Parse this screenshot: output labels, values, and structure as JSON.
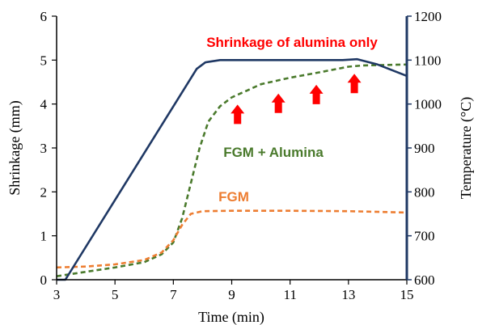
{
  "chart_data": {
    "type": "line",
    "xlabel": "Time (min)",
    "ylabel": "Shrinkage (mm)",
    "y2label": "Temperature (°C)",
    "xlim": [
      3,
      15
    ],
    "ylim": [
      0,
      6
    ],
    "y2lim": [
      600,
      1200
    ],
    "x_ticks": [
      "3",
      "5",
      "7",
      "9",
      "11",
      "13",
      "15"
    ],
    "y_ticks": [
      "0",
      "1",
      "2",
      "3",
      "4",
      "5",
      "6"
    ],
    "y2_ticks": [
      "600",
      "700",
      "800",
      "900",
      "1000",
      "1100",
      "1200"
    ],
    "grid": false,
    "series": [
      {
        "name": "FGM + Alumina",
        "axis": "left",
        "style": "dashed",
        "color": "#4a7a2c",
        "points": [
          [
            3.0,
            0.08
          ],
          [
            4.0,
            0.18
          ],
          [
            5.0,
            0.28
          ],
          [
            6.0,
            0.4
          ],
          [
            6.6,
            0.58
          ],
          [
            7.0,
            0.85
          ],
          [
            7.3,
            1.4
          ],
          [
            7.6,
            2.2
          ],
          [
            7.9,
            3.0
          ],
          [
            8.2,
            3.6
          ],
          [
            8.6,
            3.95
          ],
          [
            9.0,
            4.15
          ],
          [
            9.5,
            4.3
          ],
          [
            10.0,
            4.45
          ],
          [
            11.0,
            4.6
          ],
          [
            12.0,
            4.72
          ],
          [
            13.0,
            4.85
          ],
          [
            13.5,
            4.88
          ],
          [
            15.0,
            4.9
          ]
        ]
      },
      {
        "name": "FGM",
        "axis": "left",
        "style": "dashed",
        "color": "#ed7d31",
        "points": [
          [
            3.0,
            0.28
          ],
          [
            4.0,
            0.3
          ],
          [
            5.0,
            0.35
          ],
          [
            6.0,
            0.45
          ],
          [
            6.6,
            0.62
          ],
          [
            7.0,
            0.9
          ],
          [
            7.3,
            1.25
          ],
          [
            7.6,
            1.5
          ],
          [
            8.0,
            1.56
          ],
          [
            9.0,
            1.57
          ],
          [
            11.0,
            1.57
          ],
          [
            13.0,
            1.56
          ],
          [
            15.0,
            1.53
          ]
        ]
      },
      {
        "name": "Temperature",
        "axis": "right",
        "style": "solid",
        "color": "#1f3864",
        "points": [
          [
            3.0,
            600
          ],
          [
            3.3,
            600
          ],
          [
            7.8,
            1080
          ],
          [
            8.1,
            1095
          ],
          [
            8.6,
            1100
          ],
          [
            12.8,
            1100
          ],
          [
            13.3,
            1102
          ],
          [
            14.0,
            1090
          ],
          [
            15.0,
            1064
          ]
        ]
      }
    ],
    "annotations": [
      {
        "text": "Shrinkage of alumina only",
        "color": "#ff0000"
      },
      {
        "text": "FGM + Alumina",
        "color": "#4a7a2c"
      },
      {
        "text": "FGM",
        "color": "#ed7d31"
      }
    ],
    "arrows": {
      "color": "#ff0000",
      "direction": "up",
      "x": [
        9.2,
        10.6,
        11.9,
        13.2
      ],
      "y": [
        3.95,
        4.2,
        4.4,
        4.65
      ]
    }
  }
}
